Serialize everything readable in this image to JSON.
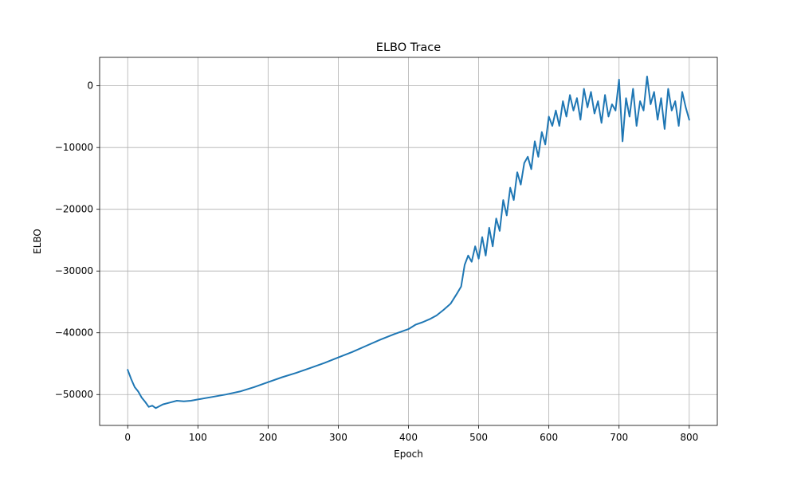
{
  "chart_data": {
    "type": "line",
    "title": "ELBO Trace",
    "xlabel": "Epoch",
    "ylabel": "ELBO",
    "xlim": [
      -40,
      840
    ],
    "ylim": [
      -55000,
      4600
    ],
    "xticks": [
      0,
      100,
      200,
      300,
      400,
      500,
      600,
      700,
      800
    ],
    "xtick_labels": [
      "0",
      "100",
      "200",
      "300",
      "400",
      "500",
      "600",
      "700",
      "800"
    ],
    "yticks": [
      -50000,
      -40000,
      -30000,
      -20000,
      -10000,
      0
    ],
    "ytick_labels": [
      "−50000",
      "−40000",
      "−30000",
      "−20000",
      "−10000",
      "0"
    ],
    "grid": true,
    "series": [
      {
        "color": "#1f77b4",
        "x": [
          0,
          5,
          10,
          15,
          20,
          25,
          30,
          35,
          40,
          50,
          60,
          70,
          80,
          90,
          100,
          120,
          140,
          160,
          180,
          200,
          220,
          240,
          260,
          280,
          300,
          320,
          340,
          360,
          380,
          400,
          410,
          420,
          430,
          440,
          450,
          460,
          470,
          475,
          480,
          485,
          490,
          495,
          500,
          505,
          510,
          515,
          520,
          525,
          530,
          535,
          540,
          545,
          550,
          555,
          560,
          565,
          570,
          575,
          580,
          585,
          590,
          595,
          600,
          605,
          610,
          615,
          620,
          625,
          630,
          635,
          640,
          645,
          650,
          655,
          660,
          665,
          670,
          675,
          680,
          685,
          690,
          695,
          700,
          705,
          710,
          715,
          720,
          725,
          730,
          735,
          740,
          745,
          750,
          755,
          760,
          765,
          770,
          775,
          780,
          785,
          790,
          795,
          800
        ],
        "y": [
          -46000,
          -47500,
          -48800,
          -49500,
          -50500,
          -51200,
          -52000,
          -51800,
          -52200,
          -51600,
          -51300,
          -51000,
          -51100,
          -51000,
          -50800,
          -50400,
          -50000,
          -49500,
          -48800,
          -48000,
          -47200,
          -46500,
          -45700,
          -44900,
          -44000,
          -43100,
          -42100,
          -41100,
          -40200,
          -39400,
          -38700,
          -38300,
          -37800,
          -37200,
          -36300,
          -35300,
          -33500,
          -32500,
          -29000,
          -27500,
          -28500,
          -26000,
          -28000,
          -24500,
          -27500,
          -23000,
          -26000,
          -21500,
          -23500,
          -18500,
          -21000,
          -16500,
          -18500,
          -14000,
          -16000,
          -12500,
          -11500,
          -13500,
          -9000,
          -11500,
          -7500,
          -9500,
          -5000,
          -6500,
          -4000,
          -6500,
          -2500,
          -5000,
          -1500,
          -4000,
          -2000,
          -5500,
          -500,
          -3500,
          -1000,
          -4500,
          -2500,
          -6000,
          -1500,
          -5000,
          -3000,
          -4000,
          1000,
          -9000,
          -2000,
          -5000,
          -500,
          -6500,
          -2500,
          -4000,
          1500,
          -3000,
          -1000,
          -5500,
          -2000,
          -7000,
          -500,
          -4000,
          -2500,
          -6500,
          -1000,
          -3500,
          -5500
        ]
      }
    ]
  }
}
